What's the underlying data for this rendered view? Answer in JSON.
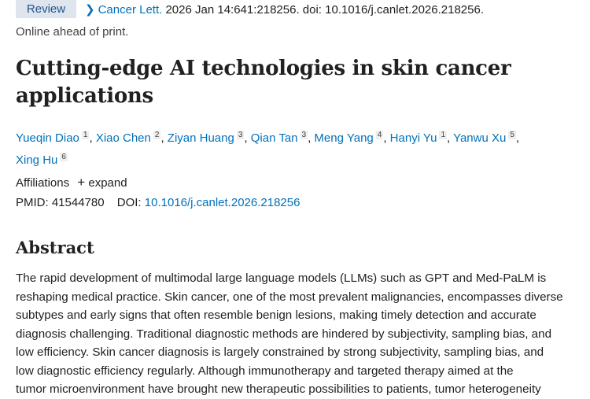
{
  "article_type": "Review",
  "citation": {
    "journal": "Cancer Lett.",
    "details": "2026 Jan 14:641:218256. doi: 10.1016/j.canlet.2026.218256."
  },
  "status": "Online ahead of print.",
  "title_lines": [
    "Cutting-edge AI technologies in skin cancer",
    "applications"
  ],
  "authors": [
    {
      "name": "Yueqin Diao",
      "aff": "1"
    },
    {
      "name": "Xiao Chen",
      "aff": "2"
    },
    {
      "name": "Ziyan Huang",
      "aff": "3"
    },
    {
      "name": "Qian Tan",
      "aff": "3"
    },
    {
      "name": "Meng Yang",
      "aff": "4"
    },
    {
      "name": "Hanyi Yu",
      "aff": "1"
    },
    {
      "name": "Yanwu Xu",
      "aff": "5"
    },
    {
      "name": "Xing Hu",
      "aff": "6"
    }
  ],
  "affiliations": {
    "label": "Affiliations",
    "expand": "expand"
  },
  "ids": {
    "pmid_label": "PMID:",
    "pmid": "41544780",
    "doi_label": "DOI:",
    "doi": "10.1016/j.canlet.2026.218256"
  },
  "abstract": {
    "heading": "Abstract",
    "lines": [
      "The rapid development of multimodal large language models (LLMs) such as GPT and Med-PaLM is",
      "reshaping medical practice. Skin cancer, one of the most prevalent malignancies, encompasses diverse",
      "subtypes and early signs that often resemble benign lesions, making timely detection and accurate",
      "diagnosis challenging. Traditional diagnostic methods are hindered by subjectivity, sampling bias, and",
      "low efficiency. Skin cancer diagnosis is largely constrained by strong subjectivity, sampling bias, and",
      "low diagnostic efficiency regularly. Although immunotherapy and targeted therapy aimed at the",
      "tumor microenvironment have brought new therapeutic possibilities to patients, tumor heterogeneity"
    ]
  }
}
